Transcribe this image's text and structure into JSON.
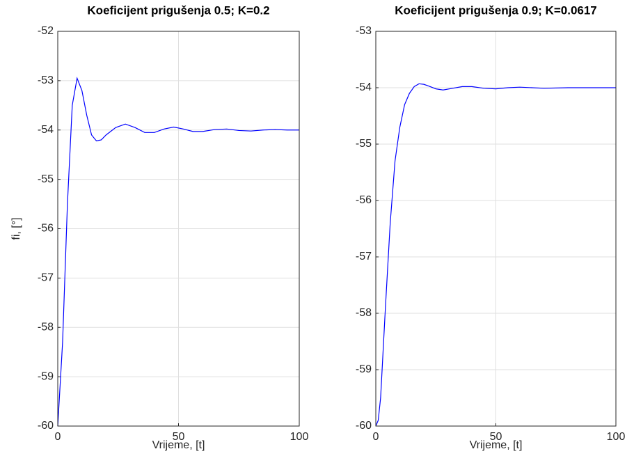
{
  "chart_data": [
    {
      "type": "line",
      "title": "Koeficijent prigušenja 0.5; K=0.2",
      "xlabel": "Vrijeme, [t]",
      "ylabel": "fi, [°]",
      "x": [
        0,
        2,
        4,
        6,
        8,
        10,
        12,
        14,
        16,
        18,
        20,
        24,
        28,
        32,
        36,
        40,
        44,
        48,
        52,
        56,
        60,
        65,
        70,
        75,
        80,
        85,
        90,
        95,
        100
      ],
      "series": [
        {
          "color": "#0000ff",
          "values": [
            -60,
            -58.3,
            -55.5,
            -53.5,
            -52.95,
            -53.2,
            -53.7,
            -54.1,
            -54.22,
            -54.2,
            -54.1,
            -53.95,
            -53.88,
            -53.95,
            -54.05,
            -54.05,
            -53.98,
            -53.94,
            -53.98,
            -54.03,
            -54.03,
            -53.99,
            -53.98,
            -54.01,
            -54.02,
            -54.0,
            -53.99,
            -54.0,
            -54.0
          ]
        }
      ],
      "xlim": [
        0,
        100
      ],
      "xticks": [
        0,
        50,
        100
      ],
      "ylim": [
        -60,
        -52
      ],
      "yticks": [
        -60,
        -59,
        -58,
        -57,
        -56,
        -55,
        -54,
        -53,
        -52
      ],
      "grid": true
    },
    {
      "type": "line",
      "title": "Koeficijent prigušenja 0.9; K=0.0617",
      "xlabel": "Vrijeme, [t]",
      "x": [
        0,
        1,
        2,
        4,
        6,
        8,
        10,
        12,
        14,
        16,
        18,
        20,
        22,
        25,
        28,
        32,
        36,
        40,
        45,
        50,
        55,
        60,
        70,
        80,
        90,
        100
      ],
      "series": [
        {
          "color": "#0000ff",
          "values": [
            -60,
            -59.9,
            -59.5,
            -57.9,
            -56.4,
            -55.3,
            -54.7,
            -54.3,
            -54.1,
            -53.98,
            -53.93,
            -53.94,
            -53.97,
            -54.02,
            -54.04,
            -54.01,
            -53.98,
            -53.98,
            -54.01,
            -54.02,
            -54.0,
            -53.99,
            -54.01,
            -54.0,
            -54.0,
            -54.0
          ]
        }
      ],
      "xlim": [
        0,
        100
      ],
      "xticks": [
        0,
        50,
        100
      ],
      "ylim": [
        -60,
        -53
      ],
      "yticks": [
        -60,
        -59,
        -58,
        -57,
        -56,
        -55,
        -54,
        -53
      ],
      "grid": true
    }
  ]
}
